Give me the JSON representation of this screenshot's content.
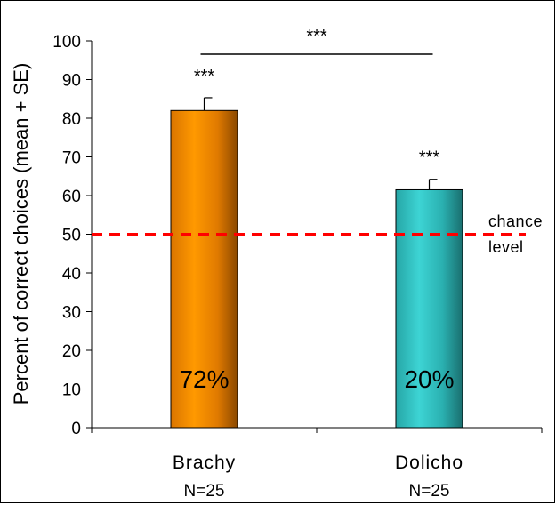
{
  "chart_data": {
    "type": "bar",
    "title": "",
    "ylabel": "Percent of correct choices (mean + SE)",
    "xlabel": "",
    "ylim": [
      0,
      100
    ],
    "yticks": [
      0,
      10,
      20,
      30,
      40,
      50,
      60,
      70,
      80,
      90,
      100
    ],
    "categories": [
      "Brachy",
      "Dolicho"
    ],
    "sublabels": [
      "N=25",
      "N=25"
    ],
    "values": [
      82,
      61.5
    ],
    "errors": [
      3.3,
      2.7
    ],
    "bar_labels": [
      "72%",
      "20%"
    ],
    "significance": [
      "***",
      "***"
    ],
    "comparison": {
      "label": "***",
      "between": [
        0,
        1
      ]
    },
    "reference_line": {
      "value": 50,
      "label_lines": [
        "chance",
        "level"
      ],
      "color": "#ff0000",
      "style": "dashed"
    },
    "bar_colors": [
      "#ff9900",
      "#33cccc"
    ],
    "grid": false,
    "legend": "none"
  }
}
